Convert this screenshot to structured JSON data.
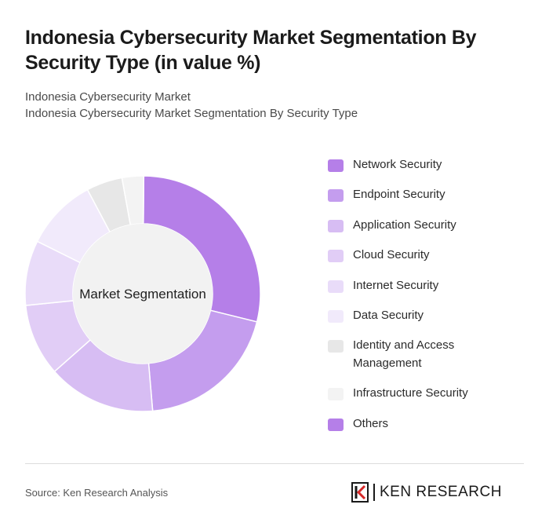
{
  "header": {
    "title": "Indonesia Cybersecurity Market Segmentation By Security Type (in value %)",
    "subtitle_line1": "Indonesia Cybersecurity Market",
    "subtitle_line2": "Indonesia Cybersecurity Market Segmentation By Security Type"
  },
  "chart_data": {
    "type": "pie",
    "variant": "donut",
    "center_label": "Market Segmentation",
    "legend_position": "right",
    "categories": [
      "Network Security",
      "Endpoint Security",
      "Application Security",
      "Cloud Security",
      "Internet Security",
      "Data Security",
      "Identity and Access Management",
      "Infrastructure Security",
      "Others"
    ],
    "values": [
      29,
      20,
      15,
      10,
      9,
      10,
      5,
      3,
      0
    ],
    "colors": [
      "#b57fe8",
      "#c49dee",
      "#d7bdf3",
      "#e1cdf6",
      "#e9dcf9",
      "#f1eafb",
      "#e7e7e7",
      "#f3f3f3",
      "#b57fe8"
    ]
  },
  "footer": {
    "source": "Source: Ken Research Analysis",
    "brand": "KEN RESEARCH"
  },
  "icons": {
    "logo": "ken-research-k-logo-icon"
  }
}
